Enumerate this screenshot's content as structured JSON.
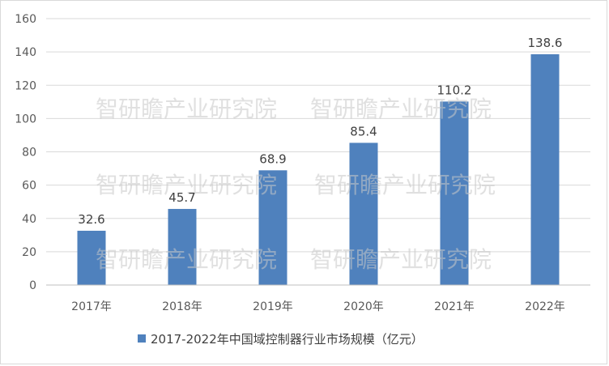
{
  "chart_data": {
    "type": "bar",
    "categories": [
      "2017年",
      "2018年",
      "2019年",
      "2020年",
      "2021年",
      "2022年"
    ],
    "series": [
      {
        "name": "2017-2022年中国域控制器行业市场规模（亿元）",
        "values": [
          32.6,
          45.7,
          68.9,
          85.4,
          110.2,
          138.6
        ]
      }
    ],
    "data_labels": [
      "32.6",
      "45.7",
      "68.9",
      "85.4",
      "110.2",
      "138.6"
    ],
    "y_ticks": [
      "0",
      "20",
      "40",
      "60",
      "80",
      "100",
      "120",
      "140",
      "160"
    ],
    "ylim": [
      0,
      160
    ],
    "grid": true,
    "legend_position": "bottom",
    "bar_color": "#4f81bd"
  },
  "watermark": {
    "text": [
      "智研瞻产业研究院",
      "智研瞻产业研究院",
      "智研瞻产业研究院",
      "智研瞻产业研究院",
      "智研瞻产业研究院",
      "智研瞻产业研究院"
    ]
  }
}
